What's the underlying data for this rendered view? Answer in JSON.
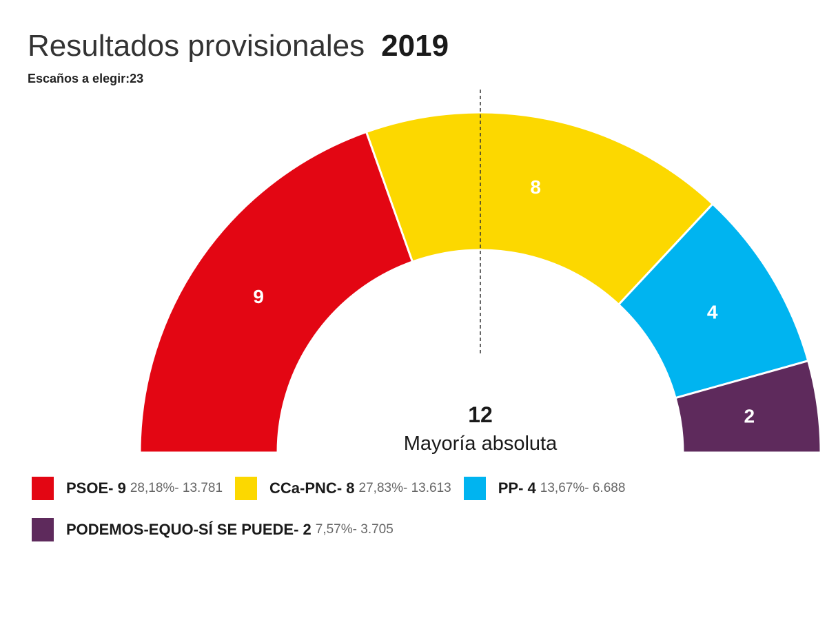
{
  "chart_data": {
    "type": "pie",
    "variant": "semicircle-parliament",
    "title": "Resultados provisionales",
    "year": "2019",
    "subtitle": "Escaños a elegir:23",
    "total_seats": 23,
    "majority": {
      "value": "12",
      "label": "Mayoría absoluta"
    },
    "series": [
      {
        "name": "PSOE",
        "seats": 9,
        "percent": "28,18%",
        "votes": "13.781",
        "color": "#e30613"
      },
      {
        "name": "CCa-PNC",
        "seats": 8,
        "percent": "27,83%",
        "votes": "13.613",
        "color": "#fcd800"
      },
      {
        "name": "PP",
        "seats": 4,
        "percent": "13,67%",
        "votes": "6.688",
        "color": "#00b4f0"
      },
      {
        "name": "PODEMOS-EQUO-SÍ SE PUEDE",
        "seats": 2,
        "percent": "7,57%",
        "votes": "3.705",
        "color": "#5e2a5c"
      }
    ]
  }
}
